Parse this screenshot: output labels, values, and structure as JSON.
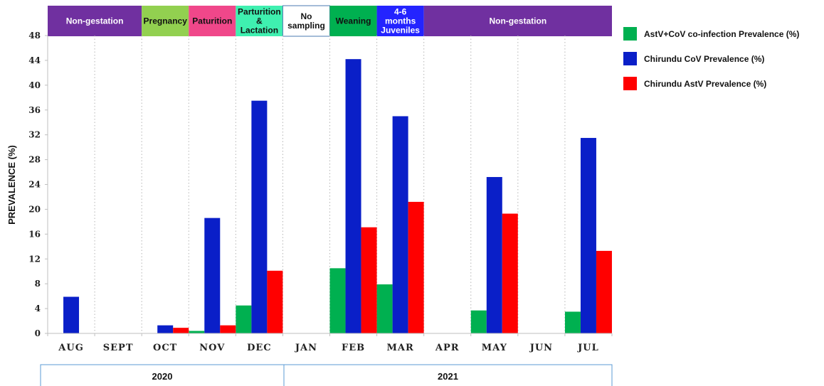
{
  "chart_data": {
    "type": "bar",
    "ylabel": "PREVALENCE (%)",
    "ylim": [
      0,
      48
    ],
    "yticks": [
      0,
      4,
      8,
      12,
      16,
      20,
      24,
      28,
      32,
      36,
      40,
      44,
      48
    ],
    "categories": [
      "AUG",
      "SEPT",
      "OCT",
      "NOV",
      "DEC",
      "JAN",
      "FEB",
      "MAR",
      "APR",
      "MAY",
      "JUN",
      "JUL"
    ],
    "series": [
      {
        "name": "AstV+CoV co-infection Prevalence (%)",
        "color": "#00b050",
        "values": [
          0,
          0,
          0,
          0.4,
          4.5,
          0,
          10.5,
          7.9,
          0,
          3.7,
          0,
          3.5
        ]
      },
      {
        "name": "Chirundu CoV Prevalence (%)",
        "color": "#0a1fc8",
        "values": [
          5.9,
          0,
          1.3,
          18.6,
          37.5,
          0,
          44.2,
          35.0,
          0,
          25.2,
          0,
          31.5
        ]
      },
      {
        "name": "Chirundu AstV Prevalence (%)",
        "color": "#ff0000",
        "values": [
          0,
          0,
          0.9,
          1.3,
          10.1,
          0,
          17.1,
          21.2,
          0,
          19.3,
          0,
          13.3
        ]
      }
    ],
    "grid": "vertical dotted",
    "legend": "right",
    "phases": [
      {
        "label": "Non-gestation",
        "start": 0,
        "end": 2,
        "color": "#7030a0",
        "text_color": "#ffffff"
      },
      {
        "label": "Pregnancy",
        "start": 2,
        "end": 3,
        "color": "#92d050",
        "text_color": "#111111"
      },
      {
        "label": "Paturition",
        "start": 3,
        "end": 4,
        "color": "#f0478a",
        "text_color": "#111111"
      },
      {
        "label": "Parturition & Lactation",
        "start": 4,
        "end": 5,
        "color": "#3ff0b0",
        "text_color": "#111111"
      },
      {
        "label": "No sampling",
        "start": 5,
        "end": 6,
        "color": "#ffffff",
        "text_color": "#111111"
      },
      {
        "label": "Weaning",
        "start": 6,
        "end": 7,
        "color": "#00b050",
        "text_color": "#111111"
      },
      {
        "label": "4-6 months Juveniles",
        "start": 7,
        "end": 8,
        "color": "#2424ff",
        "text_color": "#ffffff"
      },
      {
        "label": "Non-gestation",
        "start": 8,
        "end": 12,
        "color": "#7030a0",
        "text_color": "#ffffff"
      }
    ],
    "years": [
      {
        "label": "2020",
        "start": 0,
        "end": 5
      },
      {
        "label": "2021",
        "start": 5,
        "end": 12
      }
    ]
  }
}
